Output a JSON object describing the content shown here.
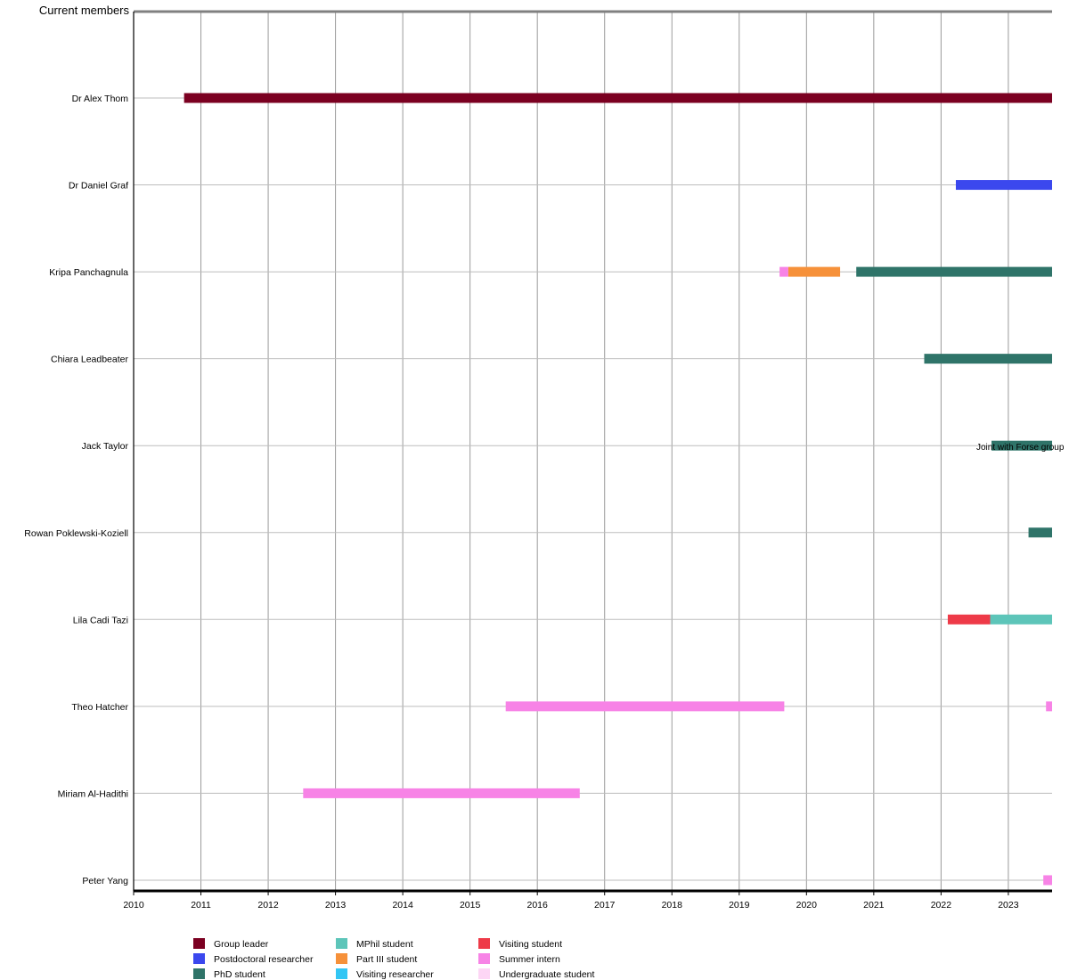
{
  "chart_data": {
    "type": "timeline",
    "title": "Current members",
    "xlim": [
      2010,
      2023.65
    ],
    "x_ticks": [
      "2010",
      "2011",
      "2012",
      "2013",
      "2014",
      "2015",
      "2016",
      "2017",
      "2018",
      "2019",
      "2020",
      "2021",
      "2022",
      "2023"
    ],
    "grid": true,
    "legend_position": "bottom",
    "roles": [
      {
        "key": "group_leader",
        "label": "Group leader",
        "color": "#7b0021"
      },
      {
        "key": "postdoc",
        "label": "Postdoctoral researcher",
        "color": "#3b48ee"
      },
      {
        "key": "phd",
        "label": "PhD student",
        "color": "#2f7469"
      },
      {
        "key": "mphil",
        "label": "MPhil student",
        "color": "#5dc5b9"
      },
      {
        "key": "part_iii",
        "label": "Part III student",
        "color": "#f6913a"
      },
      {
        "key": "visiting_researcher",
        "label": "Visiting researcher",
        "color": "#33c6f4"
      },
      {
        "key": "visiting_student",
        "label": "Visiting student",
        "color": "#ee3a48"
      },
      {
        "key": "summer_intern",
        "label": "Summer intern",
        "color": "#f783e6"
      },
      {
        "key": "undergraduate",
        "label": "Undergraduate student",
        "color": "#fdd6f5"
      }
    ],
    "members": [
      {
        "name": "Dr Alex Thom",
        "periods": [
          {
            "role": "group_leader",
            "start": 2010.75,
            "end": 2023.65
          }
        ]
      },
      {
        "name": "Dr Daniel Graf",
        "periods": [
          {
            "role": "postdoc",
            "start": 2022.22,
            "end": 2023.65
          }
        ]
      },
      {
        "name": "Kripa Panchagnula",
        "periods": [
          {
            "role": "summer_intern",
            "start": 2019.6,
            "end": 2019.73
          },
          {
            "role": "part_iii",
            "start": 2019.73,
            "end": 2020.5
          },
          {
            "role": "phd",
            "start": 2020.74,
            "end": 2023.65
          }
        ]
      },
      {
        "name": "Chiara Leadbeater",
        "periods": [
          {
            "role": "phd",
            "start": 2021.75,
            "end": 2023.65
          }
        ]
      },
      {
        "name": "Jack Taylor",
        "periods": [
          {
            "role": "phd",
            "start": 2022.75,
            "end": 2023.65,
            "annotation": "Joint with Forse group"
          }
        ]
      },
      {
        "name": "Rowan Poklewski-Koziell",
        "periods": [
          {
            "role": "phd",
            "start": 2023.3,
            "end": 2023.65
          }
        ]
      },
      {
        "name": "Lila Cadi Tazi",
        "periods": [
          {
            "role": "visiting_student",
            "start": 2022.1,
            "end": 2022.73
          },
          {
            "role": "mphil",
            "start": 2022.73,
            "end": 2023.65
          }
        ]
      },
      {
        "name": "Theo Hatcher",
        "periods": [
          {
            "role": "summer_intern",
            "start": 2015.53,
            "end": 2019.67
          },
          {
            "role": "summer_intern",
            "start": 2023.56,
            "end": 2023.65
          }
        ]
      },
      {
        "name": "Miriam Al-Hadithi",
        "periods": [
          {
            "role": "summer_intern",
            "start": 2012.52,
            "end": 2016.63
          }
        ]
      },
      {
        "name": "Peter Yang",
        "periods": [
          {
            "role": "summer_intern",
            "start": 2023.52,
            "end": 2023.65
          }
        ]
      }
    ]
  }
}
